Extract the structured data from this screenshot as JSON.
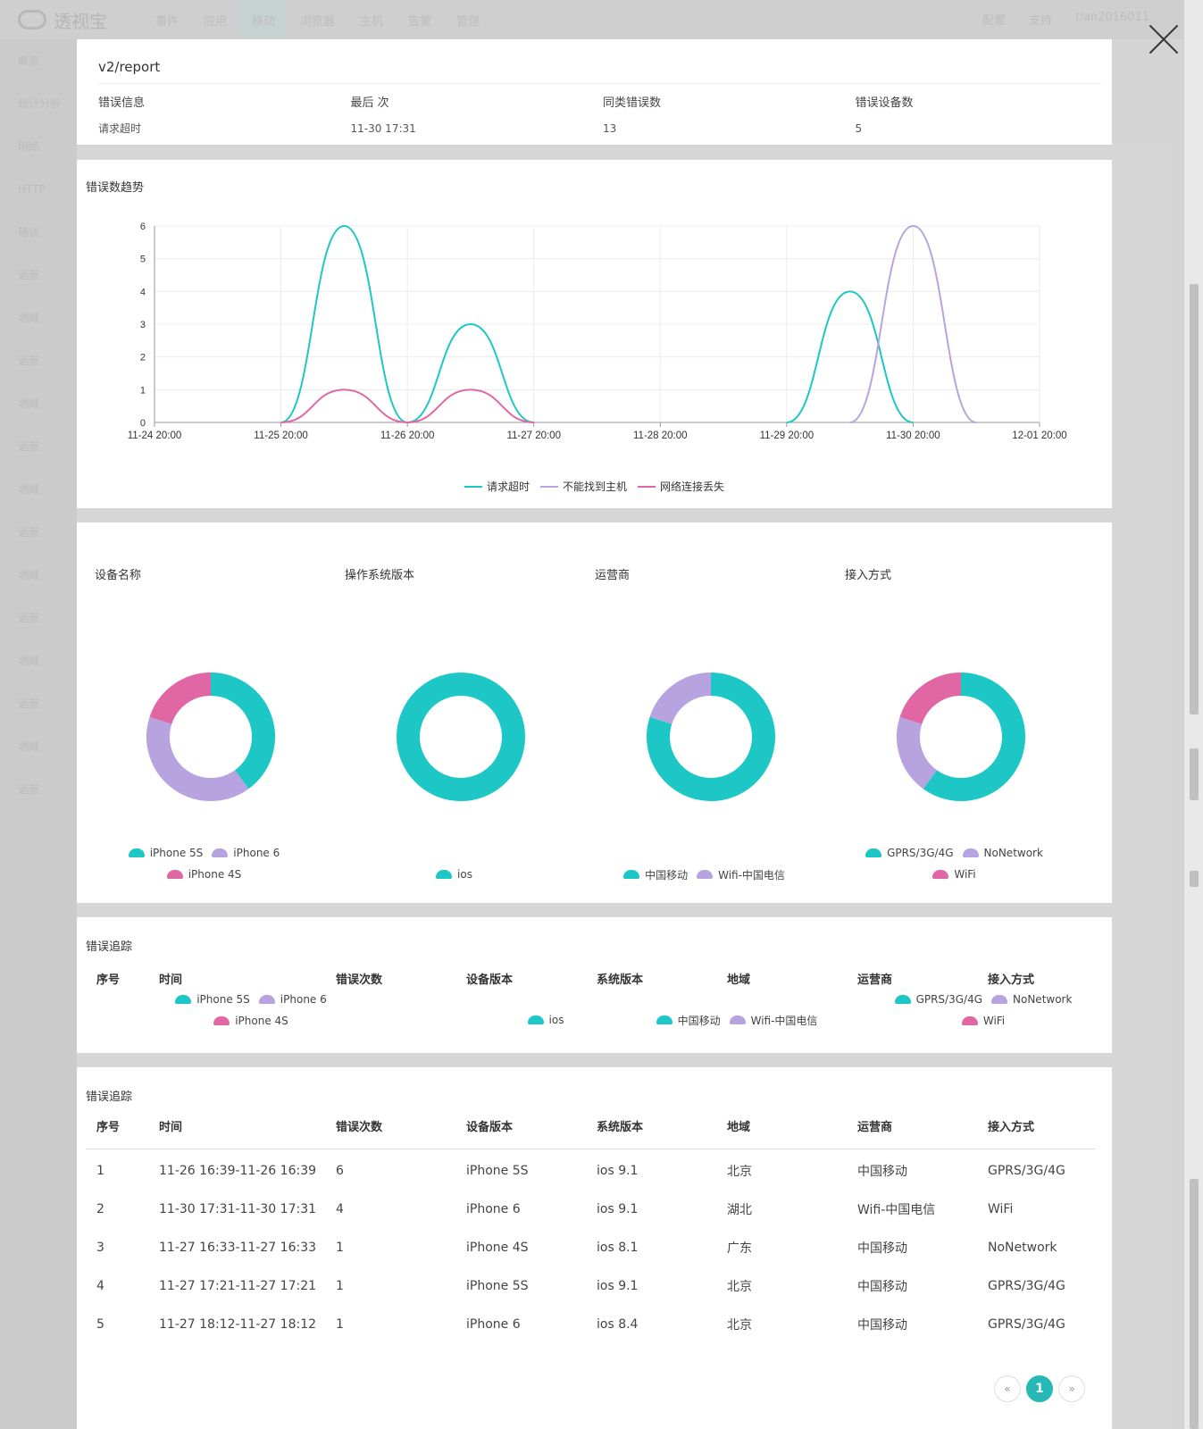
{
  "background": {
    "logo_text": "透视宝",
    "nav": [
      "事件",
      "应用",
      "移动",
      "浏览器",
      "主机",
      "告警",
      "管理"
    ],
    "right": [
      "配置",
      "支持",
      "tian2016011"
    ],
    "sidebar": [
      "概览",
      "统计分析",
      "网络",
      "HTTP",
      "错误",
      "运营",
      "地域",
      "运营",
      "地域",
      "运营",
      "地域",
      "运营",
      "地域",
      "运营",
      "地域",
      "运营",
      "地域",
      "运营"
    ]
  },
  "header": {
    "title": "v2/report",
    "columns": [
      {
        "label": "错误信息",
        "value": "请求超时"
      },
      {
        "label": "最后    次",
        "value": "11-30 17:31"
      },
      {
        "label": "同类错误数",
        "value": "13"
      },
      {
        "label": "错误设备数",
        "value": "5"
      }
    ]
  },
  "trend": {
    "title": "错误数趋势"
  },
  "chart_data": [
    {
      "type": "line",
      "title": "错误数趋势",
      "x": [
        "11-24 20:00",
        "11-25 08:00",
        "11-25 20:00",
        "11-26 08:00",
        "11-26 20:00",
        "11-27 08:00",
        "11-27 20:00",
        "11-28 08:00",
        "11-28 20:00",
        "11-29 08:00",
        "11-29 20:00",
        "11-30 08:00",
        "11-30 20:00",
        "12-01 08:00",
        "12-01 20:00"
      ],
      "x_ticks": [
        "11-24 20:00",
        "11-25 20:00",
        "11-26 20:00",
        "11-27 20:00",
        "11-28 20:00",
        "11-29 20:00",
        "11-30 20:00",
        "12-01 20:00"
      ],
      "series": [
        {
          "name": "请求超时",
          "color": "#1cc7c5",
          "values": [
            null,
            null,
            0,
            6,
            0,
            3,
            0,
            null,
            null,
            null,
            0,
            4,
            0,
            null,
            null
          ]
        },
        {
          "name": "不能找到主机",
          "color": "#b7a3e0",
          "values": [
            null,
            null,
            null,
            null,
            null,
            null,
            null,
            null,
            null,
            null,
            null,
            0,
            6,
            0,
            null
          ]
        },
        {
          "name": "网络连接丢失",
          "color": "#e066a4",
          "values": [
            null,
            null,
            0,
            1,
            0,
            1,
            0,
            null,
            null,
            null,
            null,
            null,
            null,
            null,
            null
          ]
        }
      ],
      "ylim": [
        0,
        6
      ],
      "y_ticks": [
        0,
        1,
        2,
        3,
        4,
        5,
        6
      ],
      "grid": true,
      "legend": "bottom-center"
    },
    {
      "type": "pie",
      "title": "设备名称",
      "categories": [
        "iPhone 5S",
        "iPhone 6",
        "iPhone 4S"
      ],
      "values": [
        0.4,
        0.4,
        0.2
      ],
      "colors": [
        "#1cc7c5",
        "#b7a3e0",
        "#e066a4"
      ]
    },
    {
      "type": "pie",
      "title": "操作系统版本",
      "categories": [
        "ios"
      ],
      "values": [
        1.0
      ],
      "colors": [
        "#1cc7c5"
      ]
    },
    {
      "type": "pie",
      "title": "运营商",
      "categories": [
        "中国移动",
        "Wifi-中国电信"
      ],
      "values": [
        0.8,
        0.2
      ],
      "colors": [
        "#1cc7c5",
        "#b7a3e0"
      ]
    },
    {
      "type": "pie",
      "title": "接入方式",
      "categories": [
        "GPRS/3G/4G",
        "NoNetwork",
        "WiFi"
      ],
      "values": [
        0.6,
        0.2,
        0.2
      ],
      "colors": [
        "#1cc7c5",
        "#b7a3e0",
        "#e066a4"
      ]
    }
  ],
  "donuts": [
    {
      "title": "设备名称",
      "legend": [
        {
          "label": "iPhone 5S",
          "color": "#1cc7c5"
        },
        {
          "label": "iPhone 6",
          "color": "#b7a3e0"
        },
        {
          "label": "iPhone 4S",
          "color": "#e066a4"
        }
      ]
    },
    {
      "title": "操作系统版本",
      "legend": [
        {
          "label": "ios",
          "color": "#1cc7c5"
        }
      ]
    },
    {
      "title": "运营商",
      "legend": [
        {
          "label": "中国移动",
          "color": "#1cc7c5"
        },
        {
          "label": "Wifi-中国电信",
          "color": "#b7a3e0"
        }
      ]
    },
    {
      "title": "接入方式",
      "legend": [
        {
          "label": "GPRS/3G/4G",
          "color": "#1cc7c5"
        },
        {
          "label": "NoNetwork",
          "color": "#b7a3e0"
        },
        {
          "label": "WiFi",
          "color": "#e066a4"
        }
      ]
    }
  ],
  "error_trace": {
    "title": "错误追踪",
    "headers": [
      "序号",
      "时间",
      "错误次数",
      "设备版本",
      "系统版本",
      "地域",
      "运营商",
      "接入方式"
    ],
    "rows": [
      [
        "1",
        "11-26 16:39-11-26 16:39",
        "6",
        "iPhone 5S",
        "ios 9.1",
        "北京",
        "中国移动",
        "GPRS/3G/4G"
      ],
      [
        "2",
        "11-30 17:31-11-30 17:31",
        "4",
        "iPhone 6",
        "ios 9.1",
        "湖北",
        "Wifi-中国电信",
        "WiFi"
      ],
      [
        "3",
        "11-27 16:33-11-27 16:33",
        "1",
        "iPhone 4S",
        "ios 8.1",
        "广东",
        "中国移动",
        "NoNetwork"
      ],
      [
        "4",
        "11-27 17:21-11-27 17:21",
        "1",
        "iPhone 5S",
        "ios 9.1",
        "北京",
        "中国移动",
        "GPRS/3G/4G"
      ],
      [
        "5",
        "11-27 18:12-11-27 18:12",
        "1",
        "iPhone 6",
        "ios 8.4",
        "北京",
        "中国移动",
        "GPRS/3G/4G"
      ]
    ],
    "pager": {
      "prev": "«",
      "current": "1",
      "next": "»"
    }
  }
}
